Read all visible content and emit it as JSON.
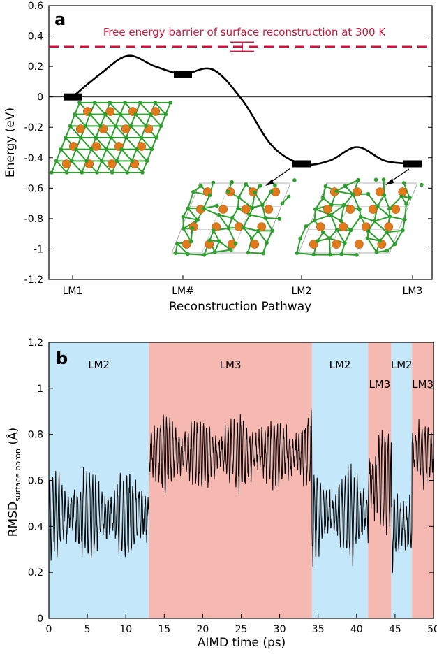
{
  "chart_data": [
    {
      "panel": "a",
      "type": "line",
      "title": "",
      "xlabel": "Reconstruction Pathway",
      "ylabel": "Energy (eV)",
      "ylim": [
        -1.2,
        0.6
      ],
      "yticks": [
        0.6,
        0.4,
        0.2,
        0,
        -0.2,
        -0.4,
        -0.6,
        -0.8,
        -1,
        -1.2
      ],
      "ytick_labels": [
        "0.6",
        "0.4",
        "0.2",
        "0",
        "-0.2",
        "-0.4",
        "-0.6",
        "-0.8",
        "-1",
        "-1.2"
      ],
      "categories": [
        "LM1",
        "LM#",
        "LM2",
        "LM3"
      ],
      "minima_energies": [
        0.0,
        0.15,
        -0.44,
        -0.44
      ],
      "path_x": [
        0,
        0.25,
        0.5,
        0.75,
        1.0,
        1.25,
        1.5,
        1.75,
        2.0,
        2.25,
        2.5,
        2.75,
        3.0
      ],
      "path_y": [
        0.0,
        0.15,
        0.27,
        0.2,
        0.15,
        0.18,
        -0.02,
        -0.32,
        -0.44,
        -0.42,
        -0.33,
        -0.42,
        -0.44
      ],
      "barrier": {
        "label": "Free energy barrier of surface reconstruction at 300 K",
        "value": 0.33,
        "error": 0.03,
        "x": 1.5,
        "color": "#d4143a"
      },
      "zero_line": 0,
      "structures": [
        {
          "name": "LM1-structure"
        },
        {
          "name": "LM2-structure"
        },
        {
          "name": "LM3-structure"
        }
      ],
      "colors": {
        "boron": "#2ca02c",
        "metal": "#e07a1a"
      }
    },
    {
      "panel": "b",
      "type": "line",
      "xlabel": "AIMD time (ps)",
      "ylabel_main": "RMSD",
      "ylabel_sub": "surface boron",
      "ylabel_unit": " (Å)",
      "xlim": [
        0,
        50
      ],
      "ylim": [
        0,
        1.2
      ],
      "xticks": [
        0,
        5,
        10,
        15,
        20,
        25,
        30,
        35,
        40,
        45,
        50
      ],
      "xtick_labels": [
        "0",
        "5",
        "10",
        "15",
        "20",
        "25",
        "30",
        "35",
        "40",
        "45",
        "50"
      ],
      "yticks": [
        0,
        0.2,
        0.4,
        0.6,
        0.8,
        1,
        1.2
      ],
      "ytick_labels": [
        "0",
        "0.2",
        "0.4",
        "0.6",
        "0.8",
        "1",
        "1.2"
      ],
      "regions": [
        {
          "label": "LM2",
          "start": 0,
          "end": 13,
          "color": "#c5e7fa"
        },
        {
          "label": "LM3",
          "start": 13,
          "end": 34.2,
          "color": "#f6b9b2"
        },
        {
          "label": "LM2",
          "start": 34.2,
          "end": 41.5,
          "color": "#c5e7fa"
        },
        {
          "label": "LM3",
          "start": 41.5,
          "end": 44.5,
          "color": "#f6b9b2"
        },
        {
          "label": "LM2",
          "start": 44.5,
          "end": 47.2,
          "color": "#c5e7fa"
        },
        {
          "label": "LM3",
          "start": 47.2,
          "end": 50,
          "color": "#f6b9b2"
        }
      ],
      "series": [
        {
          "name": "RMSD",
          "segments": [
            {
              "start": 0,
              "end": 13,
              "mean": 0.45,
              "amplitude": 0.17
            },
            {
              "start": 13,
              "end": 34.2,
              "mean": 0.72,
              "amplitude": 0.14
            },
            {
              "start": 34.2,
              "end": 41.5,
              "mean": 0.45,
              "amplitude": 0.17
            },
            {
              "start": 41.5,
              "end": 44.5,
              "mean": 0.6,
              "amplitude": 0.22
            },
            {
              "start": 44.5,
              "end": 47.2,
              "mean": 0.4,
              "amplitude": 0.17
            },
            {
              "start": 47.2,
              "end": 50,
              "mean": 0.72,
              "amplitude": 0.12
            }
          ]
        }
      ]
    }
  ]
}
